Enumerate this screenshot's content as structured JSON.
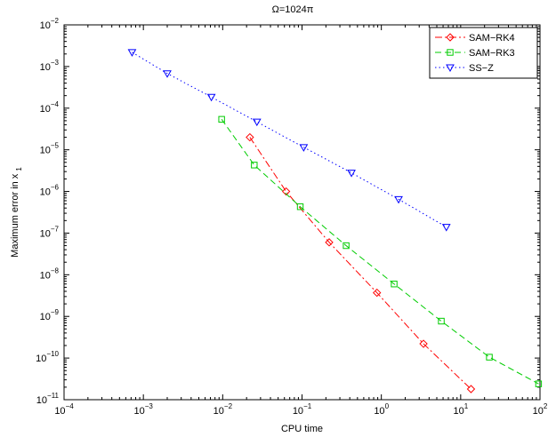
{
  "chart_data": {
    "type": "line",
    "title": "Ω=1024π",
    "xlabel": "CPU time",
    "ylabel_main": "Maximum error in x",
    "ylabel_sub": "1",
    "xscale": "log",
    "yscale": "log",
    "xlim": [
      0.0001,
      100
    ],
    "ylim": [
      1e-11,
      0.01
    ],
    "grid": false,
    "legend_position": "top-right",
    "x_ticks": [
      {
        "base": "10",
        "exp": "−4",
        "value": 0.0001
      },
      {
        "base": "10",
        "exp": "−3",
        "value": 0.001
      },
      {
        "base": "10",
        "exp": "−2",
        "value": 0.01
      },
      {
        "base": "10",
        "exp": "−1",
        "value": 0.1
      },
      {
        "base": "10",
        "exp": "0",
        "value": 1
      },
      {
        "base": "10",
        "exp": "1",
        "value": 10
      },
      {
        "base": "10",
        "exp": "2",
        "value": 100
      }
    ],
    "y_ticks": [
      {
        "base": "10",
        "exp": "−11",
        "value": 1e-11
      },
      {
        "base": "10",
        "exp": "−10",
        "value": 1e-10
      },
      {
        "base": "10",
        "exp": "−9",
        "value": 1e-09
      },
      {
        "base": "10",
        "exp": "−8",
        "value": 1e-08
      },
      {
        "base": "10",
        "exp": "−7",
        "value": 1e-07
      },
      {
        "base": "10",
        "exp": "−6",
        "value": 1e-06
      },
      {
        "base": "10",
        "exp": "−5",
        "value": 1e-05
      },
      {
        "base": "10",
        "exp": "−4",
        "value": 0.0001
      },
      {
        "base": "10",
        "exp": "−3",
        "value": 0.001
      },
      {
        "base": "10",
        "exp": "−2",
        "value": 0.01
      }
    ],
    "series": [
      {
        "name": "SAM−RK4",
        "color": "#ff0000",
        "line_style": "dash-dot",
        "marker": "diamond",
        "x": [
          0.022,
          0.063,
          0.22,
          0.88,
          3.4,
          13.5
        ],
        "y": [
          2e-05,
          1e-06,
          6e-08,
          3.7e-09,
          2.2e-10,
          1.8e-11
        ]
      },
      {
        "name": "SAM−RK3",
        "color": "#00cc00",
        "line_style": "dashed",
        "marker": "square",
        "x": [
          0.0097,
          0.025,
          0.095,
          0.36,
          1.45,
          5.7,
          23,
          96
        ],
        "y": [
          5.4e-05,
          4.3e-06,
          4.3e-07,
          5e-08,
          6e-09,
          7.7e-10,
          1.05e-10,
          2.4e-11
        ]
      },
      {
        "name": "SS−Z",
        "color": "#0000ff",
        "line_style": "dotted",
        "marker": "triangle-down",
        "x": [
          0.00072,
          0.002,
          0.0072,
          0.027,
          0.105,
          0.42,
          1.65,
          6.6
        ],
        "y": [
          0.0022,
          0.00068,
          0.000185,
          4.7e-05,
          1.15e-05,
          2.8e-06,
          6.5e-07,
          1.4e-07
        ]
      }
    ]
  }
}
